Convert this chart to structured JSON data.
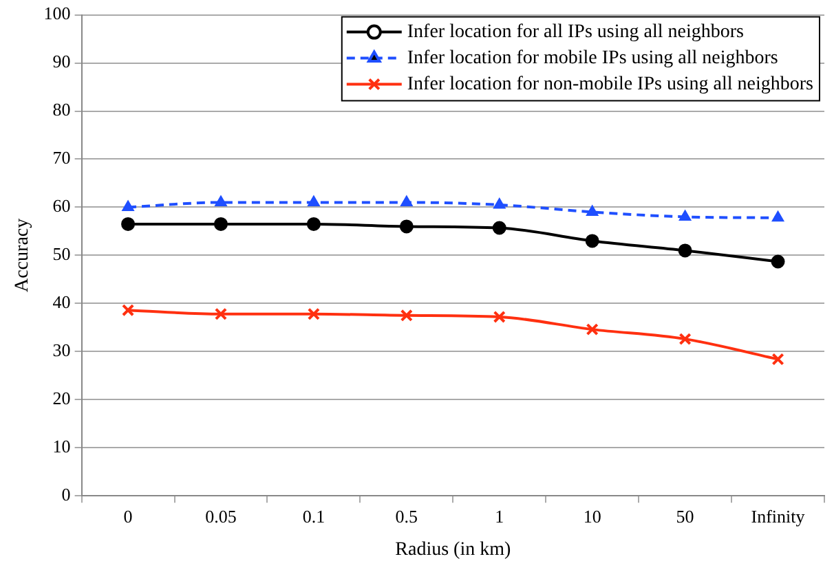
{
  "chart_data": {
    "type": "line",
    "xlabel": "Radius (in km)",
    "ylabel": "Accuracy",
    "categories": [
      "0",
      "0.05",
      "0.1",
      "0.5",
      "1",
      "10",
      "50",
      "Infinity"
    ],
    "ylim": [
      0,
      100
    ],
    "yticks": [
      0,
      10,
      20,
      30,
      40,
      50,
      60,
      70,
      80,
      90,
      100
    ],
    "grid": "y",
    "legend": "top right",
    "series": [
      {
        "name": "Infer location for all IPs using all neighbors",
        "color": "#000000",
        "marker": "circle",
        "line_style": "solid",
        "values": [
          56.5,
          56.5,
          56.5,
          56,
          55.7,
          53,
          51,
          48.7
        ]
      },
      {
        "name": "Infer location for mobile IPs using all neighbors",
        "color": "#1f4fff",
        "marker": "triangle",
        "line_style": "dashed",
        "values": [
          60,
          61,
          61,
          61,
          60.5,
          59,
          58,
          57.8
        ]
      },
      {
        "name": "Infer location for non-mobile IPs using all neighbors",
        "color": "#ff3010",
        "marker": "cross",
        "line_style": "solid",
        "values": [
          38.6,
          37.8,
          37.8,
          37.5,
          37.2,
          34.6,
          32.6,
          28.4
        ]
      }
    ]
  }
}
